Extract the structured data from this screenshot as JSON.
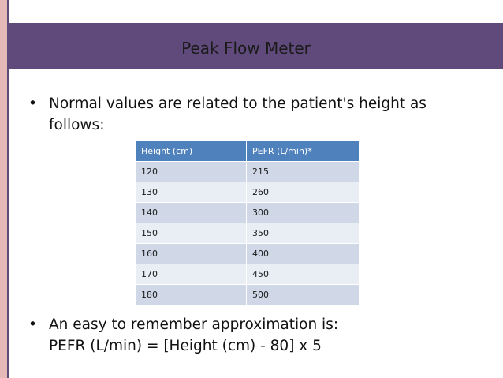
{
  "slide": {
    "title": "Peak Flow Meter",
    "bullets": [
      {
        "marker": "•",
        "lines": [
          "Normal values are related to the patient's height as",
          "follows:"
        ]
      },
      {
        "marker": "•",
        "lines": [
          "An easy to remember approximation is:",
          "PEFR (L/min) = [Height (cm) - 80] x 5"
        ]
      }
    ],
    "table": {
      "headers": [
        "Height (cm)",
        "PEFR (L/min)*"
      ],
      "rows": [
        [
          "120",
          "215"
        ],
        [
          "130",
          "260"
        ],
        [
          "140",
          "300"
        ],
        [
          "150",
          "350"
        ],
        [
          "160",
          "400"
        ],
        [
          "170",
          "450"
        ],
        [
          "180",
          "500"
        ]
      ]
    }
  },
  "colors": {
    "title_band": "#5f4a7b",
    "left_bar_outer": "#e5b9b8",
    "left_bar_inner": "#5f4b7a",
    "table_header": "#4f81bd",
    "table_row_dark": "#d0d8e8",
    "table_row_light": "#e9edf4"
  }
}
